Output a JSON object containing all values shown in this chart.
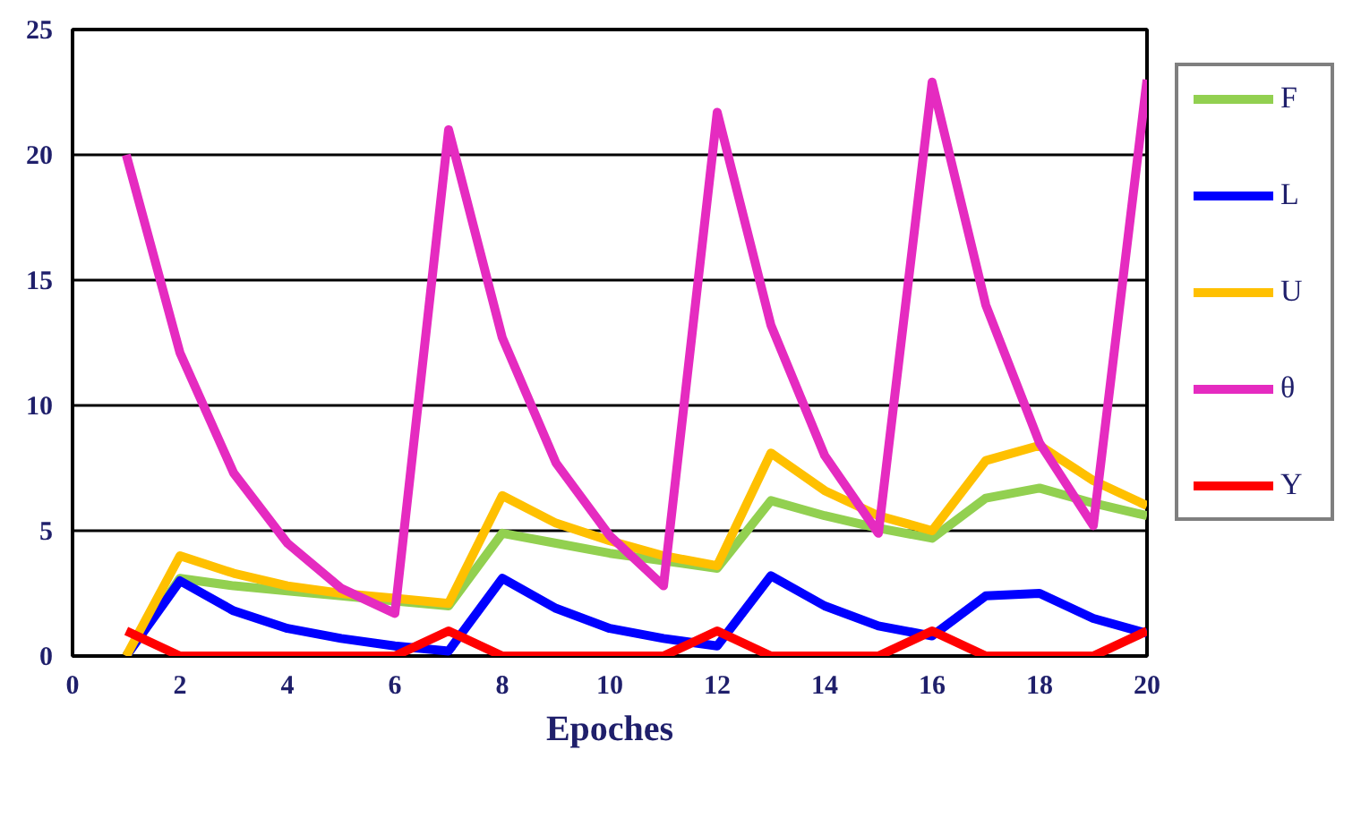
{
  "chart_data": {
    "type": "line",
    "xlabel": "Epoches",
    "x": [
      1,
      2,
      3,
      4,
      5,
      6,
      7,
      8,
      9,
      10,
      11,
      12,
      13,
      14,
      15,
      16,
      17,
      18,
      19,
      20
    ],
    "series": [
      {
        "name": "F",
        "color": "#92d050",
        "values": [
          0,
          3.1,
          2.8,
          2.6,
          2.4,
          2.2,
          2.0,
          4.9,
          4.5,
          4.1,
          3.8,
          3.5,
          6.2,
          5.6,
          5.1,
          4.7,
          6.3,
          6.7,
          6.1,
          5.6
        ]
      },
      {
        "name": "L",
        "color": "#0000ff",
        "values": [
          0,
          3.0,
          1.8,
          1.1,
          0.7,
          0.4,
          0.2,
          3.1,
          1.9,
          1.1,
          0.7,
          0.4,
          3.2,
          2.0,
          1.2,
          0.8,
          2.4,
          2.5,
          1.5,
          0.9
        ]
      },
      {
        "name": "U",
        "color": "#ffc000",
        "values": [
          0,
          4.0,
          3.3,
          2.8,
          2.5,
          2.3,
          2.1,
          6.4,
          5.3,
          4.6,
          4.0,
          3.6,
          8.1,
          6.6,
          5.6,
          5.0,
          7.8,
          8.4,
          7.0,
          6.0
        ]
      },
      {
        "name": "θ",
        "color": "#e52bc0",
        "values": [
          20,
          12.1,
          7.3,
          4.5,
          2.7,
          1.7,
          21,
          12.7,
          7.7,
          4.8,
          2.8,
          21.7,
          13.2,
          8.0,
          4.9,
          22.9,
          14.0,
          8.5,
          5.2,
          23
        ]
      },
      {
        "name": "Y",
        "color": "#ff0000",
        "values": [
          1,
          0,
          0,
          0,
          0,
          0,
          1,
          0,
          0,
          0,
          0,
          1,
          0,
          0,
          0,
          1,
          0,
          0,
          0,
          1
        ]
      }
    ],
    "xlim": [
      0,
      20
    ],
    "xticks": [
      0,
      2,
      4,
      6,
      8,
      10,
      12,
      14,
      16,
      18,
      20
    ],
    "ylim": [
      0,
      25
    ],
    "yticks": [
      0,
      5,
      10,
      15,
      20,
      25
    ],
    "grid": "y",
    "legend": "right",
    "marker": "none",
    "line_style": "solid"
  }
}
